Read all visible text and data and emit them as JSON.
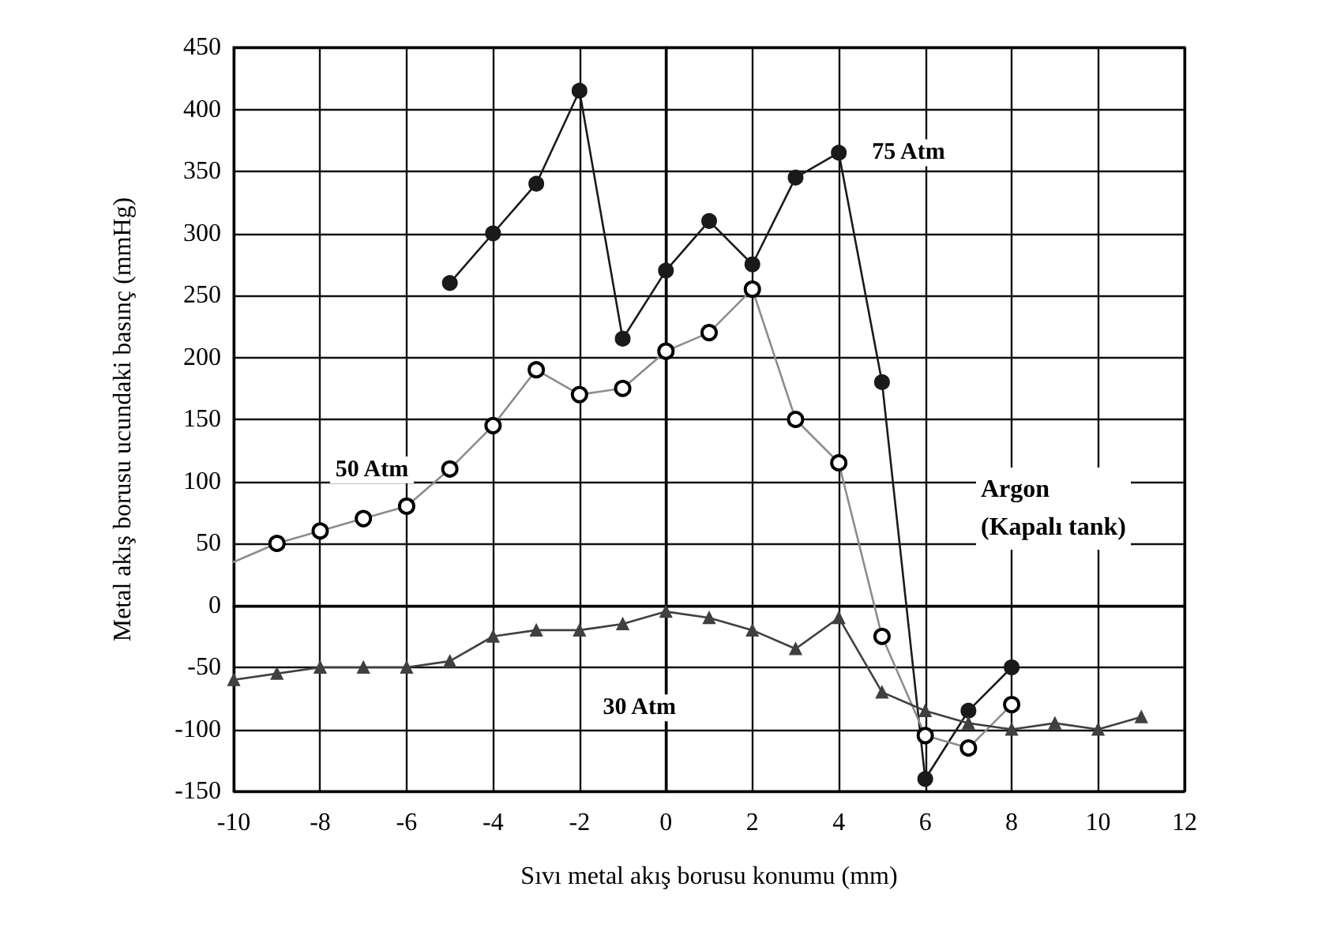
{
  "chart_data": {
    "type": "line",
    "xlabel": "Sıvı metal akış borusu konumu (mm)",
    "ylabel": "Metal akış borusu ucundaki basınç (mmHg)",
    "xlim": [
      -10,
      12
    ],
    "xticks": [
      -10,
      -8,
      -6,
      -4,
      -2,
      0,
      2,
      4,
      6,
      8,
      10,
      12
    ],
    "ylim": [
      -150,
      450
    ],
    "yticks": [
      -150,
      -100,
      -50,
      0,
      50,
      100,
      150,
      200,
      250,
      300,
      350,
      400,
      450
    ],
    "grid": true,
    "legend": false,
    "line_style": "solid",
    "series": [
      {
        "name": "75 Atm",
        "color": "#1a1a1a",
        "marker": "circle",
        "x": [
          -5,
          -4,
          -3,
          -2,
          -1,
          0,
          1,
          2,
          3,
          4,
          5,
          6,
          7,
          8
        ],
        "values": [
          260,
          300,
          340,
          415,
          215,
          270,
          310,
          275,
          345,
          365,
          180,
          -140,
          -85,
          -50
        ]
      },
      {
        "name": "50 Atm",
        "color": "#8c8c8c",
        "marker": "circle",
        "x": [
          -10,
          -9,
          -8,
          -7,
          -6,
          -5,
          -4,
          -3,
          -2,
          -1,
          0,
          1,
          2,
          3,
          4,
          5,
          6,
          7,
          8
        ],
        "values": [
          35,
          50,
          60,
          70,
          80,
          110,
          145,
          190,
          170,
          175,
          205,
          220,
          255,
          150,
          115,
          -25,
          -105,
          -115,
          -80
        ]
      },
      {
        "name": "30 Atm",
        "color": "#404040",
        "marker": "triangle",
        "x": [
          -10,
          -9,
          -8,
          -7,
          -6,
          -5,
          -4,
          -3,
          -2,
          -1,
          0,
          1,
          2,
          3,
          4,
          5,
          6,
          7,
          8,
          9,
          10,
          11
        ],
        "values": [
          -60,
          -55,
          -50,
          -50,
          -50,
          -45,
          -25,
          -20,
          -20,
          -15,
          -5,
          -10,
          -20,
          -35,
          -10,
          -70,
          -85,
          -95,
          -100,
          -95,
          -100,
          -90
        ]
      }
    ],
    "annotations": [
      "Argon\n(Kapalı tank)"
    ]
  }
}
